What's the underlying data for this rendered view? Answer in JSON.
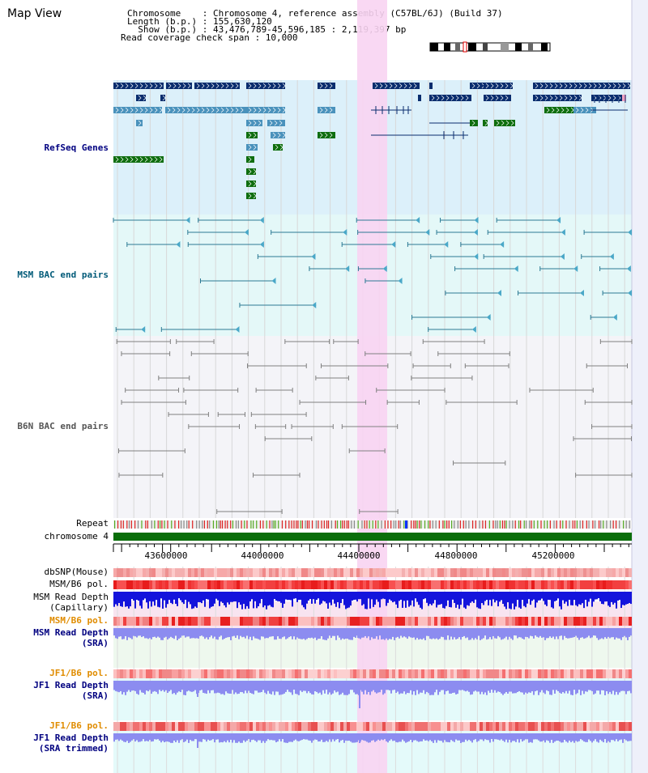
{
  "title": "Map View",
  "info": {
    "line1": "Chromosome    : Chromosome 4, reference assembly (C57BL/6J) (Build 37)",
    "line2": "Length (b.p.) : 155,630,120",
    "line3": "  Show (b.p.) : 43,476,789-45,596,185 : 2,119,397 bp",
    "line4": "Read coverage check span : 10,000"
  },
  "labels": {
    "refseq": "RefSeq Genes",
    "msm_bac": "MSM BAC end pairs",
    "b6n_bac": "B6N BAC end pairs",
    "repeat": "Repeat",
    "chromosome": "chromosome 4",
    "dbsnp": "dbSNP(Mouse)",
    "msm_b6_pol": "MSM/B6 pol.",
    "msm_depth_cap_1": "MSM Read Depth",
    "msm_depth_cap_2": "(Capillary)",
    "msm_b6_pol_2": "MSM/B6 pol.",
    "msm_depth_sra_1": "MSM Read Depth",
    "msm_depth_sra_2": "(SRA)",
    "jf1_b6_pol": "JF1/B6 pol.",
    "jf1_depth_sra_1": "JF1 Read Depth",
    "jf1_depth_sra_2": "(SRA)",
    "jf1_b6_pol_2": "JF1/B6 pol.",
    "jf1_depth_trim_1": "JF1 Read Depth",
    "jf1_depth_trim_2": "(SRA trimmed)"
  },
  "ruler": [
    "43600000",
    "44000000",
    "44400000",
    "44800000",
    "45200000"
  ],
  "colors": {
    "refseq_bg": "#dcf0fa",
    "msm_bg": "#e4f8f8",
    "b6n_bg": "#f4f4f8",
    "highlight": "#f8d4f2",
    "gene_dark": "#0a2d6e",
    "gene_mid": "#4a92bc",
    "gene_green": "#0f6e0f",
    "msm_line": "#2c7a94",
    "b6n_line": "#808080",
    "chrom_bar": "#0a6e0a",
    "depth_blue": "#1414dc",
    "depth_lavender": "#8c8cf0",
    "label_blue": "#000080",
    "label_orange": "#e08c00",
    "label_teal": "#005a78"
  }
}
